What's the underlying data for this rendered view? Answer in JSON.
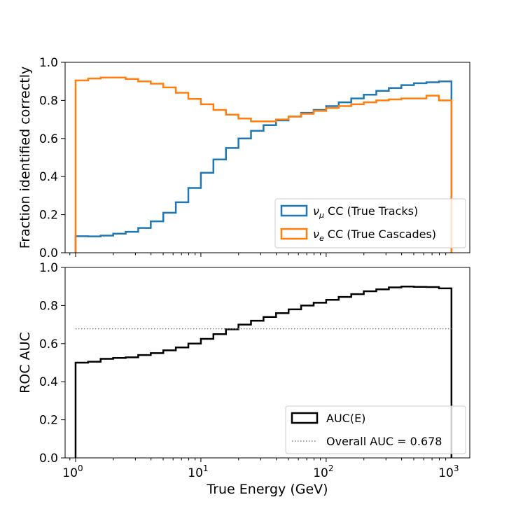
{
  "chart_data": [
    {
      "type": "line",
      "step": "post",
      "xscale": "log",
      "xlim": [
        1,
        1000
      ],
      "ylim": [
        0,
        1
      ],
      "ylabel": "Fraction identified correctly",
      "yticks": [
        0.0,
        0.2,
        0.4,
        0.6,
        0.8,
        1.0
      ],
      "ytick_labels": [
        "0.0",
        "0.2",
        "0.4",
        "0.6",
        "0.8",
        "1.0"
      ],
      "legend_position": "lower-right",
      "bin_edges": [
        1.0,
        1.259,
        1.585,
        1.995,
        2.512,
        3.162,
        3.981,
        5.012,
        6.31,
        7.943,
        10.0,
        12.589,
        15.849,
        19.953,
        25.119,
        31.623,
        39.811,
        50.119,
        63.096,
        79.433,
        100.0,
        125.893,
        158.489,
        199.526,
        251.189,
        316.228,
        398.107,
        501.187,
        630.957,
        794.328,
        1000.0
      ],
      "series": [
        {
          "name_prefix": "ν",
          "name_sub": "μ",
          "name_suffix": " CC (True Tracks)",
          "color": "#1f77b4",
          "values": [
            0.087,
            0.086,
            0.09,
            0.1,
            0.11,
            0.13,
            0.165,
            0.21,
            0.265,
            0.34,
            0.42,
            0.49,
            0.55,
            0.6,
            0.64,
            0.67,
            0.695,
            0.715,
            0.735,
            0.75,
            0.77,
            0.79,
            0.81,
            0.83,
            0.85,
            0.865,
            0.88,
            0.89,
            0.895,
            0.9
          ]
        },
        {
          "name_prefix": "ν",
          "name_sub": "e",
          "name_suffix": " CC (True Cascades)",
          "color": "#ff7f0e",
          "values": [
            0.905,
            0.915,
            0.92,
            0.92,
            0.912,
            0.9,
            0.888,
            0.868,
            0.84,
            0.808,
            0.78,
            0.75,
            0.725,
            0.705,
            0.69,
            0.69,
            0.7,
            0.715,
            0.73,
            0.745,
            0.76,
            0.77,
            0.78,
            0.79,
            0.8,
            0.805,
            0.81,
            0.81,
            0.825,
            0.8
          ]
        }
      ]
    },
    {
      "type": "line",
      "step": "post",
      "xscale": "log",
      "xlim": [
        1,
        1000
      ],
      "ylim": [
        0,
        1
      ],
      "xlabel": "True Energy (GeV)",
      "ylabel": "ROC AUC",
      "yticks": [
        0.0,
        0.2,
        0.4,
        0.6,
        0.8,
        1.0
      ],
      "ytick_labels": [
        "0.0",
        "0.2",
        "0.4",
        "0.6",
        "0.8",
        "1.0"
      ],
      "xtick_base": "10",
      "xtick_exps": [
        "0",
        "1",
        "2",
        "3"
      ],
      "legend_position": "lower-right",
      "bin_edges": [
        1.0,
        1.259,
        1.585,
        1.995,
        2.512,
        3.162,
        3.981,
        5.012,
        6.31,
        7.943,
        10.0,
        12.589,
        15.849,
        19.953,
        25.119,
        31.623,
        39.811,
        50.119,
        63.096,
        79.433,
        100.0,
        125.893,
        158.489,
        199.526,
        251.189,
        316.228,
        398.107,
        501.187,
        630.957,
        794.328,
        1000.0
      ],
      "series": [
        {
          "name": "AUC(E)",
          "color": "#000000",
          "values": [
            0.5,
            0.505,
            0.52,
            0.525,
            0.528,
            0.54,
            0.55,
            0.565,
            0.58,
            0.6,
            0.625,
            0.65,
            0.675,
            0.7,
            0.72,
            0.74,
            0.76,
            0.78,
            0.8,
            0.815,
            0.83,
            0.845,
            0.86,
            0.875,
            0.885,
            0.895,
            0.9,
            0.898,
            0.897,
            0.89
          ]
        }
      ],
      "reference_line": {
        "name": "Overall AUC = 0.678",
        "value": 0.678,
        "color": "#808080"
      }
    }
  ]
}
